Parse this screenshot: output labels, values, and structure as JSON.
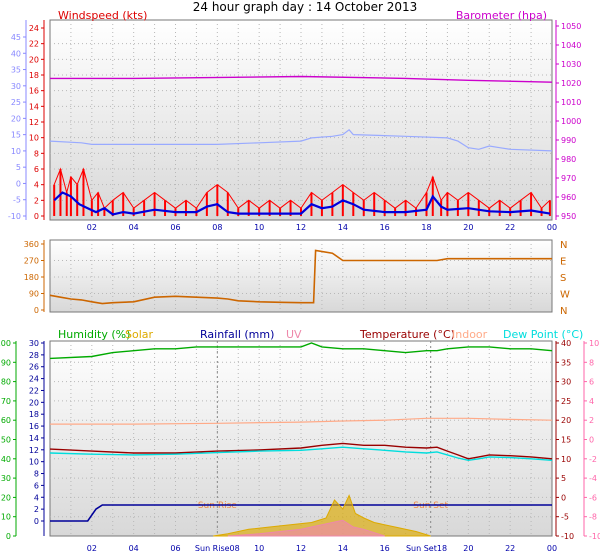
{
  "title": "24 hour graph day : 14 October 2013",
  "colors": {
    "wind": "#dd0000",
    "gust": "#ff0000",
    "avgwind": "#0000dd",
    "baro": "#cc00cc",
    "baroLine": "#99aaff",
    "dir": "#cc6600",
    "humidity": "#00aa00",
    "solar": "#ddaa00",
    "rain": "#000099",
    "uv": "#ee88aa",
    "temp": "#990000",
    "indoor": "#ffaa88",
    "dew": "#00dddd",
    "left1": "#8888ff",
    "left3": "#00aa00",
    "right3": "#ff66aa"
  },
  "chart_data": [
    {
      "type": "line",
      "title": "Windspeed (kts)",
      "x_ticks": [
        "02",
        "04",
        "06",
        "08",
        "10",
        "12",
        "14",
        "16",
        "18",
        "20",
        "22",
        "00"
      ],
      "ylabel_left": "Windspeed (kts)",
      "yticks_windspeed": [
        "0",
        "2",
        "4",
        "6",
        "8",
        "10",
        "12",
        "14",
        "16",
        "18",
        "20",
        "22",
        "24"
      ],
      "yticks_outer_left": [
        "-10",
        "-5",
        "0",
        "5",
        "10",
        "15",
        "20",
        "25",
        "30",
        "35",
        "40",
        "45"
      ],
      "ylabel_right": "Barometer (hpa)",
      "yticks_barometer": [
        "950",
        "960",
        "970",
        "980",
        "990",
        "1000",
        "1010",
        "1020",
        "1030",
        "1040",
        "1050"
      ],
      "ylim_wind": [
        0,
        25
      ],
      "ylim_baro": [
        948,
        1052
      ],
      "series": [
        {
          "name": "Barometer (hpa)",
          "axis": "baro",
          "x": [
            0,
            4,
            12,
            17,
            20,
            24
          ],
          "values": [
            1021,
            1021,
            1022,
            1021,
            1020,
            1019
          ]
        },
        {
          "name": "Gust",
          "axis": "wind",
          "x": [
            0.2,
            0.5,
            0.8,
            1.0,
            1.3,
            1.6,
            2.0,
            2.3,
            2.6,
            3.0,
            3.5,
            4.0,
            4.5,
            5.0,
            5.5,
            6.0,
            6.5,
            7.0,
            7.5,
            8.0,
            8.5,
            9.0,
            9.5,
            10.0,
            10.5,
            11.0,
            11.5,
            12.0,
            12.5,
            13.0,
            13.5,
            14.0,
            14.5,
            15.0,
            15.5,
            16.0,
            16.5,
            17.0,
            17.5,
            18.0,
            18.3,
            18.7,
            19.0,
            19.5,
            20.0,
            20.5,
            21.0,
            21.5,
            22.0,
            22.5,
            23.0,
            23.5,
            23.9
          ],
          "values": [
            4,
            6,
            3,
            5,
            4,
            6,
            2,
            3,
            1,
            2,
            3,
            1,
            2,
            3,
            2,
            1,
            2,
            1,
            3,
            4,
            3,
            1,
            2,
            1,
            2,
            1,
            2,
            1,
            3,
            2,
            3,
            4,
            3,
            2,
            3,
            2,
            1,
            2,
            1,
            3,
            5,
            2,
            3,
            2,
            3,
            2,
            1,
            2,
            1,
            2,
            3,
            1,
            2
          ]
        },
        {
          "name": "Avg wind",
          "axis": "wind",
          "x": [
            0.2,
            0.6,
            1.0,
            1.4,
            1.8,
            2.2,
            2.6,
            3.0,
            3.5,
            4.0,
            5.0,
            6.0,
            7.0,
            7.5,
            8.0,
            8.5,
            9.0,
            10.0,
            11.0,
            12.0,
            12.5,
            13.0,
            13.5,
            14.0,
            14.5,
            15.0,
            16.0,
            17.0,
            18.0,
            18.3,
            18.7,
            19.0,
            20.0,
            21.0,
            22.0,
            23.0,
            23.9
          ],
          "values": [
            2,
            3,
            2.5,
            1.5,
            1,
            0.5,
            1,
            0.2,
            0.5,
            0.3,
            0.8,
            0.5,
            0.5,
            1.2,
            1.5,
            0.5,
            0.3,
            0.3,
            0.3,
            0.3,
            1.5,
            1,
            1.2,
            2,
            1.5,
            0.8,
            0.5,
            0.5,
            0.8,
            2.5,
            1.2,
            0.8,
            1.0,
            0.6,
            0.5,
            0.7,
            0.3
          ]
        },
        {
          "name": "Outer scale line",
          "axis": "outer",
          "x": [
            0,
            1.5,
            2,
            5,
            8,
            10,
            12,
            12.5,
            13.5,
            14,
            14.3,
            14.5,
            17,
            19,
            19.5,
            20,
            20.5,
            21,
            21.5,
            22,
            24
          ],
          "values": [
            13,
            12.5,
            12,
            12,
            12,
            12.5,
            13,
            14,
            14.5,
            15,
            16.5,
            15,
            14.5,
            14,
            13,
            11,
            10.5,
            11.5,
            11,
            10.5,
            10
          ]
        }
      ]
    },
    {
      "type": "line",
      "title": "Wind direction",
      "yticks": [
        "0",
        "90",
        "180",
        "270",
        "360"
      ],
      "compass": [
        "N",
        "W",
        "S",
        "E",
        "N"
      ],
      "ylim": [
        0,
        360
      ],
      "series": [
        {
          "name": "Direction",
          "x": [
            0,
            0.5,
            1,
            1.5,
            2,
            2.5,
            3,
            4,
            5,
            6,
            7,
            8,
            8.5,
            9,
            10,
            11,
            12,
            12.6,
            12.7,
            13.5,
            14,
            14.5,
            17,
            18.5,
            19,
            20,
            21,
            22,
            23,
            24
          ],
          "values": [
            80,
            70,
            60,
            55,
            45,
            35,
            40,
            45,
            70,
            75,
            70,
            65,
            60,
            50,
            45,
            42,
            40,
            40,
            325,
            310,
            270,
            270,
            270,
            270,
            280,
            280,
            280,
            280,
            280,
            280
          ]
        }
      ]
    },
    {
      "type": "line",
      "title": "Humidity / Solar / Rainfall / UV / Temperature / Indoor / Dew Point",
      "legend": [
        "Humidity (%)",
        "Solar",
        "Rainfall (mm)",
        "UV",
        "Temperature (°C)",
        "Indoor",
        "Dew Point (°C)"
      ],
      "yticks_humidity": [
        "0",
        "10",
        "20",
        "30",
        "40",
        "50",
        "60",
        "70",
        "80",
        "90",
        "100"
      ],
      "yticks_rain": [
        "0",
        "2",
        "4",
        "6",
        "8",
        "10",
        "12",
        "14",
        "16",
        "18",
        "20",
        "22",
        "24",
        "26",
        "28",
        "30"
      ],
      "yticks_temp": [
        "-10",
        "-5",
        "0",
        "5",
        "10",
        "15",
        "20",
        "25",
        "30",
        "35",
        "40"
      ],
      "yticks_uv": [
        "-10",
        "-8",
        "-6",
        "-4",
        "-2",
        "0",
        "2",
        "4",
        "6",
        "8",
        "10"
      ],
      "annotations": [
        "Sun Rise",
        "Sun Set"
      ],
      "bottom_ticks": [
        "02",
        "04",
        "06",
        "Sun Rise08",
        "10",
        "12",
        "14",
        "16",
        "Sun Set18",
        "20",
        "22",
        "00"
      ],
      "series": [
        {
          "name": "Humidity (%)",
          "axis": "humidity",
          "x": [
            0,
            2,
            3,
            4,
            5,
            6,
            7,
            8,
            9,
            10,
            11,
            12,
            12.5,
            13,
            14,
            15,
            16,
            17,
            18,
            18.5,
            19,
            20,
            21,
            22,
            23,
            24
          ],
          "values": [
            92,
            93,
            95,
            96,
            97,
            97,
            98,
            98,
            98,
            98,
            98,
            98,
            100,
            98,
            97,
            97,
            96,
            95,
            96,
            96,
            97,
            98,
            98,
            97,
            97,
            96
          ]
        },
        {
          "name": "Indoor",
          "axis": "temp",
          "x": [
            0,
            4,
            8,
            12,
            14,
            16,
            18,
            20,
            22,
            24
          ],
          "values": [
            19,
            19,
            19.2,
            19.5,
            19.8,
            20,
            20.5,
            20.5,
            20.2,
            20
          ]
        },
        {
          "name": "Temperature (°C)",
          "axis": "temp",
          "x": [
            0,
            2,
            4,
            6,
            8,
            10,
            12,
            13,
            14,
            15,
            16,
            17,
            18,
            18.5,
            19,
            19.5,
            20,
            20.5,
            21,
            22,
            23,
            24
          ],
          "values": [
            12.5,
            12,
            11.5,
            11.5,
            12,
            12.3,
            12.8,
            13.5,
            14,
            13.5,
            13.5,
            13,
            12.8,
            13,
            12,
            11,
            10,
            10.5,
            11,
            10.8,
            10.5,
            10
          ]
        },
        {
          "name": "Dew Point (°C)",
          "axis": "temp",
          "x": [
            0,
            2,
            4,
            6,
            8,
            10,
            12,
            13,
            14,
            15,
            16,
            17,
            18,
            18.5,
            19,
            19.5,
            20,
            20.5,
            21,
            22,
            23,
            24
          ],
          "values": [
            11.5,
            11.2,
            11,
            11.2,
            11.6,
            12,
            12.2,
            12.6,
            13,
            12.6,
            12.2,
            11.8,
            11.5,
            11.8,
            11,
            10.2,
            9.6,
            10,
            10.5,
            10.3,
            10,
            9.6
          ]
        },
        {
          "name": "Rainfall (mm)",
          "axis": "rain",
          "x": [
            0,
            1.8,
            2,
            2.2,
            2.5,
            24
          ],
          "values": [
            0,
            0,
            1,
            2,
            2.7,
            2.7
          ]
        },
        {
          "name": "Solar",
          "axis": "solar",
          "x": [
            7.8,
            8.5,
            9.5,
            10.5,
            11.5,
            12.5,
            13.2,
            13.6,
            14,
            14.3,
            14.6,
            15,
            15.5,
            16.5,
            17.5,
            18.2
          ],
          "values": [
            0,
            0.5,
            1.5,
            2,
            2.5,
            3,
            4,
            8,
            6,
            9,
            5,
            4,
            3,
            2,
            1,
            0
          ]
        },
        {
          "name": "UV",
          "axis": "solar",
          "x": [
            8.5,
            10,
            12,
            13,
            13.5,
            14,
            14.5,
            15,
            16
          ],
          "values": [
            0,
            0.5,
            1.5,
            2.5,
            3,
            3.5,
            2,
            1.5,
            0
          ]
        }
      ]
    }
  ]
}
